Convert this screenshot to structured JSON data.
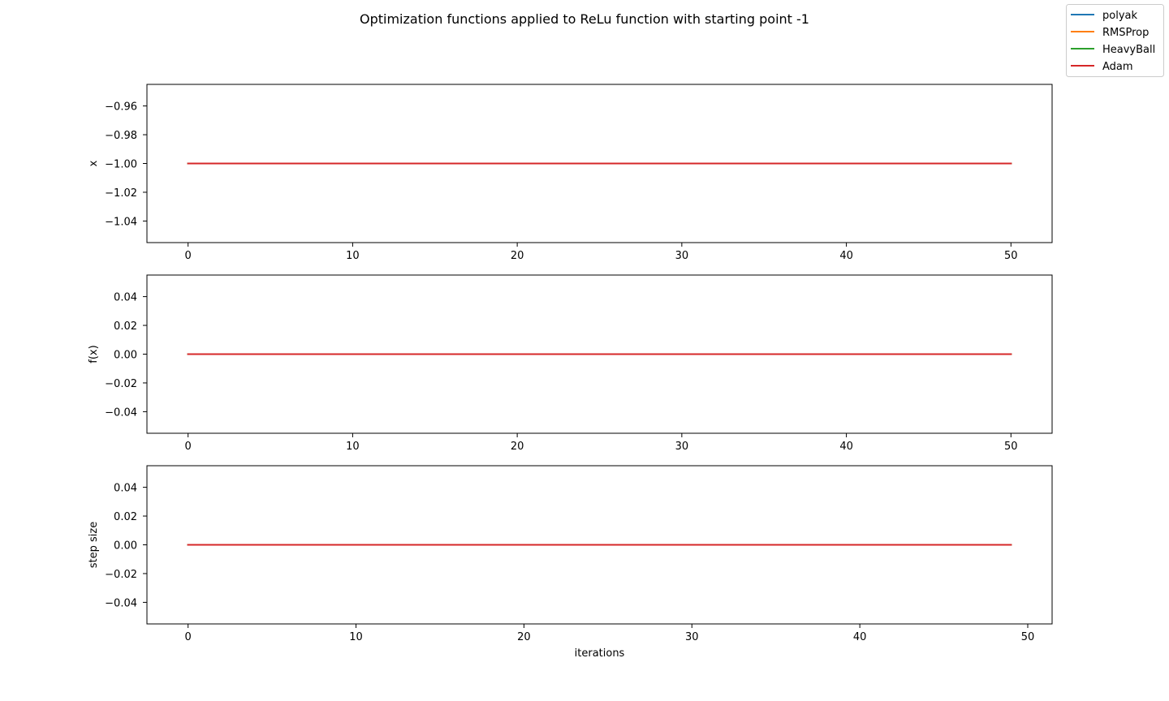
{
  "figure": {
    "title": "Optimization functions applied to ReLu function with starting point -1"
  },
  "legend": {
    "placement": "top-right",
    "entries": [
      {
        "name": "polyak",
        "color": "#1f77b4"
      },
      {
        "name": "RMSProp",
        "color": "#ff7f0e"
      },
      {
        "name": "HeavyBall",
        "color": "#2ca02c"
      },
      {
        "name": "Adam",
        "color": "#d62728"
      }
    ]
  },
  "chart_data": [
    {
      "type": "line",
      "ylabel": "x",
      "xlabel": "",
      "xlim": [
        -2.5,
        52.5
      ],
      "ylim": [
        -1.055,
        -0.945
      ],
      "xticks": [
        0,
        10,
        20,
        30,
        40,
        50
      ],
      "yticks": [
        -1.04,
        -1.02,
        -1.0,
        -0.98,
        -0.96
      ],
      "ytick_labels": [
        "−1.04",
        "−1.02",
        "−1.00",
        "−0.98",
        "−0.96"
      ],
      "grid": false,
      "x": [
        0,
        50
      ],
      "series": [
        {
          "name": "polyak",
          "values": [
            -1.0,
            -1.0
          ]
        },
        {
          "name": "RMSProp",
          "values": [
            -1.0,
            -1.0
          ]
        },
        {
          "name": "HeavyBall",
          "values": [
            -1.0,
            -1.0
          ]
        },
        {
          "name": "Adam",
          "values": [
            -1.0,
            -1.0
          ]
        }
      ]
    },
    {
      "type": "line",
      "ylabel": "f(x)",
      "xlabel": "",
      "xlim": [
        -2.5,
        52.5
      ],
      "ylim": [
        -0.055,
        0.055
      ],
      "xticks": [
        0,
        10,
        20,
        30,
        40,
        50
      ],
      "yticks": [
        -0.04,
        -0.02,
        0.0,
        0.02,
        0.04
      ],
      "ytick_labels": [
        "−0.04",
        "−0.02",
        "0.00",
        "0.02",
        "0.04"
      ],
      "grid": false,
      "x": [
        0,
        50
      ],
      "series": [
        {
          "name": "polyak",
          "values": [
            0.0,
            0.0
          ]
        },
        {
          "name": "RMSProp",
          "values": [
            0.0,
            0.0
          ]
        },
        {
          "name": "HeavyBall",
          "values": [
            0.0,
            0.0
          ]
        },
        {
          "name": "Adam",
          "values": [
            0.0,
            0.0
          ]
        }
      ]
    },
    {
      "type": "line",
      "ylabel": "step size",
      "xlabel": "iterations",
      "xlim": [
        -2.45,
        51.45
      ],
      "ylim": [
        -0.055,
        0.055
      ],
      "xticks": [
        0,
        10,
        20,
        30,
        40,
        50
      ],
      "yticks": [
        -0.04,
        -0.02,
        0.0,
        0.02,
        0.04
      ],
      "ytick_labels": [
        "−0.04",
        "−0.02",
        "0.00",
        "0.02",
        "0.04"
      ],
      "grid": false,
      "x": [
        0,
        49
      ],
      "series": [
        {
          "name": "polyak",
          "values": [
            0.0,
            0.0
          ]
        },
        {
          "name": "RMSProp",
          "values": [
            0.0,
            0.0
          ]
        },
        {
          "name": "HeavyBall",
          "values": [
            0.0,
            0.0
          ]
        },
        {
          "name": "Adam",
          "values": [
            0.0,
            0.0
          ]
        }
      ]
    }
  ]
}
